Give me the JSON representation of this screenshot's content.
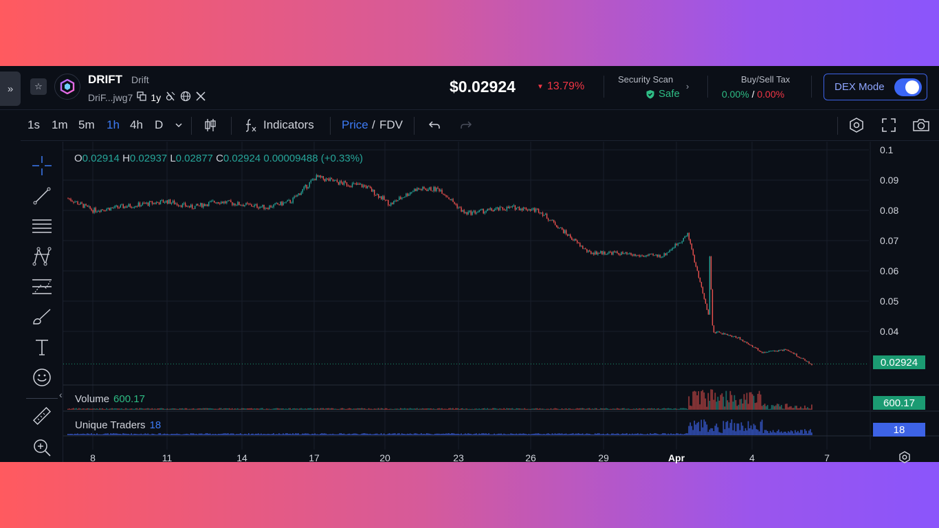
{
  "header": {
    "symbol": "DRIFT",
    "name": "Drift",
    "address_short": "DriF...jwg7",
    "age": "1y",
    "price": "$0.02924",
    "change": "13.79%",
    "security": {
      "title": "Security Scan",
      "status": "Safe"
    },
    "tax": {
      "title": "Buy/Sell Tax",
      "buy": "0.00%",
      "sep": "/",
      "sell": "0.00%"
    },
    "dex_mode": {
      "label": "DEX Mode",
      "enabled": true
    }
  },
  "toolbar": {
    "intervals": [
      "1s",
      "1m",
      "5m",
      "1h",
      "4h",
      "D"
    ],
    "active_interval": "1h",
    "indicators_label": "Indicators",
    "price_label": "Price",
    "slash": "/",
    "fdv_label": "FDV"
  },
  "ohlc": {
    "o_label": "O",
    "o": "0.02914",
    "h_label": "H",
    "h": "0.02937",
    "l_label": "L",
    "l": "0.02877",
    "c_label": "C",
    "c": "0.02924",
    "change": "0.00009488 (+0.33%)"
  },
  "volume_pane": {
    "label": "Volume",
    "value": "600.17"
  },
  "traders_pane": {
    "label": "Unique Traders",
    "value": "18"
  },
  "colors": {
    "up": "#26a69a",
    "down": "#ef5350",
    "accent": "#3d7bf5",
    "background": "#0b0f17"
  },
  "chart_data": {
    "type": "candlestick",
    "title": "",
    "y_ticks": [
      "0.1",
      "0.09",
      "0.08",
      "0.07",
      "0.06",
      "0.05",
      "0.04"
    ],
    "ylim": [
      0.025,
      0.1
    ],
    "x_ticks": [
      "8",
      "11",
      "14",
      "17",
      "20",
      "23",
      "26",
      "29",
      "Apr",
      "4",
      "7"
    ],
    "last_price": "0.02924",
    "grid": true,
    "series": [
      {
        "name": "price",
        "x": [
          "Mar 7",
          "Mar 8",
          "Mar 9",
          "Mar 10",
          "Mar 11",
          "Mar 12",
          "Mar 13",
          "Mar 14",
          "Mar 15",
          "Mar 16",
          "Mar 17",
          "Mar 18",
          "Mar 19",
          "Mar 20",
          "Mar 21",
          "Mar 22",
          "Mar 23",
          "Mar 24",
          "Mar 25",
          "Mar 26",
          "Mar 27",
          "Mar 28",
          "Mar 29",
          "Mar 30",
          "Mar 31",
          "Apr 1",
          "Apr 2",
          "Apr 3",
          "Apr 4",
          "Apr 5",
          "Apr 6"
        ],
        "values": [
          0.084,
          0.08,
          0.081,
          0.082,
          0.083,
          0.081,
          0.083,
          0.082,
          0.081,
          0.083,
          0.091,
          0.089,
          0.088,
          0.082,
          0.087,
          0.087,
          0.079,
          0.08,
          0.081,
          0.08,
          0.073,
          0.066,
          0.066,
          0.065,
          0.065,
          0.072,
          0.04,
          0.038,
          0.033,
          0.034,
          0.029
        ]
      }
    ]
  }
}
